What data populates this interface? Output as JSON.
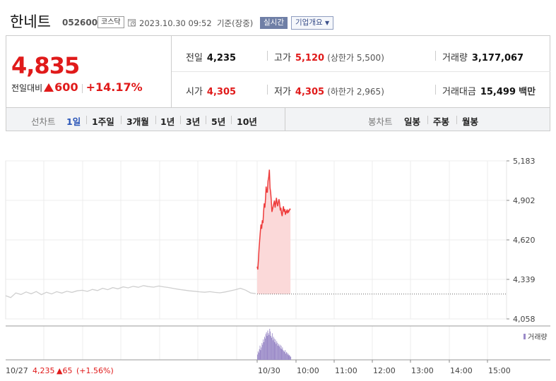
{
  "header": {
    "stock_name": "한네트",
    "stock_code": "052600",
    "market": "코스닥",
    "timestamp": "2023.10.30 09:52",
    "basis": "기준(장중)",
    "realtime_label": "실시간",
    "company_info_label": "기업개요"
  },
  "quote": {
    "price": "4,835",
    "change_label": "전일대비",
    "change_amount": "600",
    "change_percent": "+14.17%",
    "prev_close_label": "전일",
    "prev_close": "4,235",
    "open_label": "시가",
    "open": "4,305",
    "high_label": "고가",
    "high": "5,120",
    "upper_limit_label": "상한가",
    "upper_limit": "5,500",
    "low_label": "저가",
    "low": "4,305",
    "lower_limit_label": "하한가",
    "lower_limit": "2,965",
    "volume_label": "거래량",
    "volume": "3,177,067",
    "trade_value_label": "거래대금",
    "trade_value": "15,499",
    "trade_value_unit": "백만"
  },
  "tabs": {
    "line_label": "선차트",
    "periods": [
      "1일",
      "1주일",
      "3개월",
      "1년",
      "3년",
      "5년",
      "10년"
    ],
    "active_period": "1일",
    "candle_label": "봉차트",
    "candles": [
      "일봉",
      "주봉",
      "월봉"
    ]
  },
  "colors": {
    "up": "#e01a1a",
    "line_prev": "#cfcfcf",
    "line_today": "#ee3b3b",
    "fill_today": "#fbd9d9",
    "volume": "#9b8ac8",
    "active_tab": "#2a55b8"
  },
  "chart_data": {
    "type": "line",
    "y_ticks": [
      "5,183",
      "4,902",
      "4,620",
      "4,339",
      "4,058"
    ],
    "ylim": [
      4058,
      5183
    ],
    "x_ticks": [
      "10/30",
      "10:00",
      "11:00",
      "12:00",
      "13:00",
      "14:00",
      "15:00"
    ],
    "reference_price": 4235,
    "volume_legend": "거래량",
    "previous_day": {
      "date": "10/27",
      "close": "4,235",
      "change": "65",
      "change_percent": "(+1.56%)",
      "values": [
        4223,
        4210,
        4243,
        4232,
        4250,
        4237,
        4253,
        4231,
        4248,
        4236,
        4252,
        4242,
        4255,
        4247,
        4258,
        4262,
        4254,
        4268,
        4260,
        4276,
        4266,
        4281,
        4272,
        4286,
        4279,
        4290,
        4283,
        4295,
        4288,
        4284,
        4292,
        4286,
        4281,
        4274,
        4268,
        4263,
        4258,
        4255,
        4251,
        4248,
        4252,
        4247,
        4244,
        4250,
        4258,
        4266,
        4276,
        4263,
        4243,
        4238
      ]
    },
    "today": {
      "times": [
        "09:00",
        "09:01",
        "09:02",
        "09:03",
        "09:04",
        "09:05",
        "09:06",
        "09:07",
        "09:08",
        "09:09",
        "09:10",
        "09:11",
        "09:12",
        "09:13",
        "09:14",
        "09:15",
        "09:16",
        "09:17",
        "09:18",
        "09:19",
        "09:20",
        "09:21",
        "09:22",
        "09:23",
        "09:24",
        "09:25",
        "09:26",
        "09:27",
        "09:28",
        "09:29",
        "09:30",
        "09:31",
        "09:32",
        "09:33",
        "09:34",
        "09:35",
        "09:36",
        "09:37",
        "09:38",
        "09:39",
        "09:40",
        "09:41",
        "09:42",
        "09:43",
        "09:44",
        "09:45",
        "09:46",
        "09:47",
        "09:48",
        "09:49",
        "09:50",
        "09:51",
        "09:52"
      ],
      "values": [
        4430,
        4410,
        4480,
        4560,
        4620,
        4680,
        4730,
        4700,
        4760,
        4740,
        4820,
        4880,
        4850,
        4910,
        5000,
        4960,
        4960,
        5040,
        5070,
        5120,
        4990,
        4960,
        4900,
        4820,
        4840,
        4860,
        4880,
        4900,
        4850,
        4880,
        4920,
        4880,
        4860,
        4890,
        4910,
        4880,
        4830,
        4850,
        4810,
        4790,
        4830,
        4860,
        4820,
        4840,
        4800,
        4820,
        4830,
        4810,
        4830,
        4820,
        4830,
        4840,
        4835
      ],
      "volumes": [
        60,
        95,
        80,
        120,
        160,
        110,
        140,
        190,
        170,
        230,
        200,
        260,
        240,
        290,
        310,
        270,
        330,
        300,
        280,
        350,
        320,
        270,
        250,
        300,
        220,
        260,
        240,
        200,
        230,
        180,
        210,
        190,
        160,
        180,
        150,
        170,
        130,
        160,
        120,
        140,
        110,
        100,
        90,
        110,
        70,
        90,
        80,
        60,
        70,
        50,
        55,
        40,
        35
      ]
    }
  }
}
